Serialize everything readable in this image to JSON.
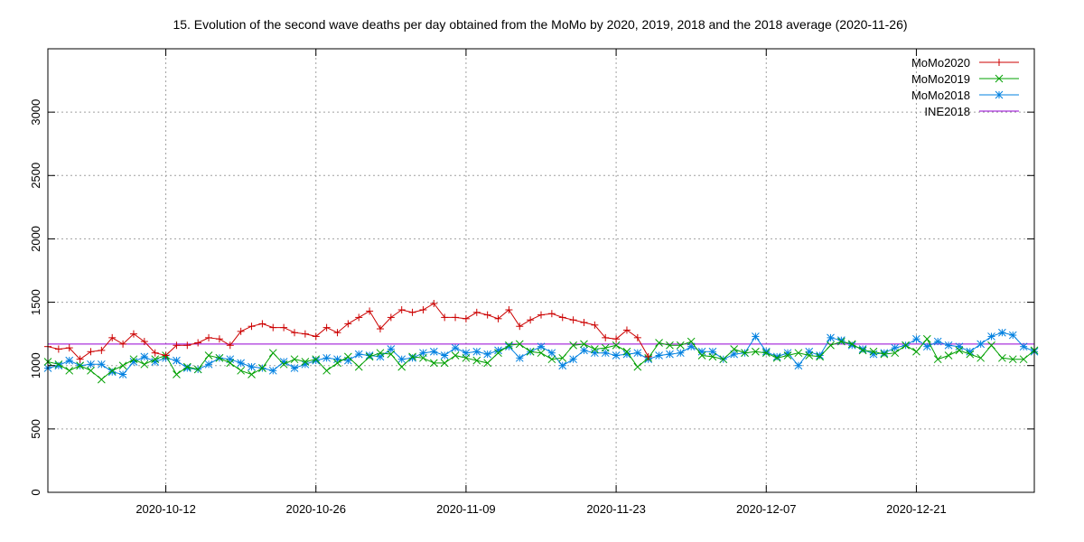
{
  "chart_data": {
    "type": "line",
    "title": "15. Evolution of the second wave deaths per day obtained from the MoMo by 2020, 2019, 2018 and the 2018 average (2020-11-26)",
    "xlabel": "",
    "ylabel": "",
    "x_range": [
      "2020-10-01",
      "2021-01-01"
    ],
    "ylim": [
      0,
      3500
    ],
    "y_ticks": [
      0,
      500,
      1000,
      1500,
      2000,
      2500,
      3000
    ],
    "x_tick_labels": [
      "2020-10-12",
      "2020-10-26",
      "2020-11-09",
      "2020-11-23",
      "2020-12-07",
      "2020-12-21"
    ],
    "grid": true,
    "legend_position": "top-right",
    "series": [
      {
        "name": "MoMo2020",
        "color": "#cc0000",
        "marker": "plus",
        "start_date": "2020-10-01",
        "values": [
          1150,
          1130,
          1140,
          1050,
          1110,
          1120,
          1220,
          1170,
          1250,
          1190,
          1100,
          1080,
          1160,
          1160,
          1180,
          1220,
          1210,
          1160,
          1270,
          1310,
          1330,
          1300,
          1300,
          1260,
          1250,
          1230,
          1300,
          1260,
          1330,
          1380,
          1430,
          1290,
          1380,
          1440,
          1420,
          1440,
          1490,
          1380,
          1380,
          1370,
          1420,
          1400,
          1370,
          1440,
          1310,
          1360,
          1400,
          1410,
          1380,
          1360,
          1340,
          1320,
          1220,
          1210,
          1280,
          1220,
          1070
        ]
      },
      {
        "name": "MoMo2019",
        "color": "#00a000",
        "marker": "cross",
        "start_date": "2020-10-01",
        "values": [
          1030,
          1010,
          960,
          1000,
          960,
          890,
          960,
          1000,
          1050,
          1010,
          1050,
          1080,
          930,
          990,
          970,
          1080,
          1060,
          1020,
          960,
          930,
          980,
          1100,
          1010,
          1050,
          1030,
          1050,
          960,
          1020,
          1070,
          990,
          1070,
          1100,
          1090,
          990,
          1070,
          1060,
          1020,
          1020,
          1080,
          1060,
          1040,
          1020,
          1100,
          1160,
          1170,
          1110,
          1100,
          1050,
          1060,
          1160,
          1170,
          1130,
          1140,
          1160,
          1110,
          990,
          1060,
          1180,
          1160,
          1160,
          1190,
          1080,
          1070,
          1050,
          1130,
          1100,
          1110,
          1100,
          1060,
          1080,
          1100,
          1080,
          1070,
          1160,
          1190,
          1170,
          1120,
          1110,
          1090,
          1100,
          1160,
          1110,
          1210,
          1050,
          1080,
          1120,
          1090,
          1060,
          1160,
          1060,
          1050,
          1050,
          1120
        ]
      },
      {
        "name": "MoMo2018",
        "color": "#0080e0",
        "marker": "star",
        "start_date": "2020-10-01",
        "values": [
          980,
          1000,
          1040,
          1000,
          1010,
          1010,
          950,
          930,
          1030,
          1070,
          1030,
          1060,
          1040,
          980,
          970,
          1010,
          1060,
          1050,
          1020,
          990,
          980,
          960,
          1030,
          980,
          1010,
          1040,
          1060,
          1050,
          1040,
          1090,
          1080,
          1070,
          1130,
          1050,
          1060,
          1100,
          1110,
          1080,
          1140,
          1100,
          1110,
          1090,
          1120,
          1150,
          1060,
          1110,
          1150,
          1100,
          1000,
          1050,
          1120,
          1100,
          1100,
          1080,
          1090,
          1100,
          1050,
          1080,
          1090,
          1100,
          1150,
          1110,
          1110,
          1050,
          1090,
          1100,
          1230,
          1110,
          1070,
          1100,
          1000,
          1110,
          1080,
          1220,
          1200,
          1160,
          1130,
          1090,
          1100,
          1140,
          1160,
          1210,
          1150,
          1190,
          1160,
          1150,
          1110,
          1170,
          1230,
          1260,
          1240,
          1150,
          1110
        ]
      },
      {
        "name": "INE2018",
        "color": "#9400d3",
        "marker": "none",
        "constant": 1170
      }
    ]
  }
}
